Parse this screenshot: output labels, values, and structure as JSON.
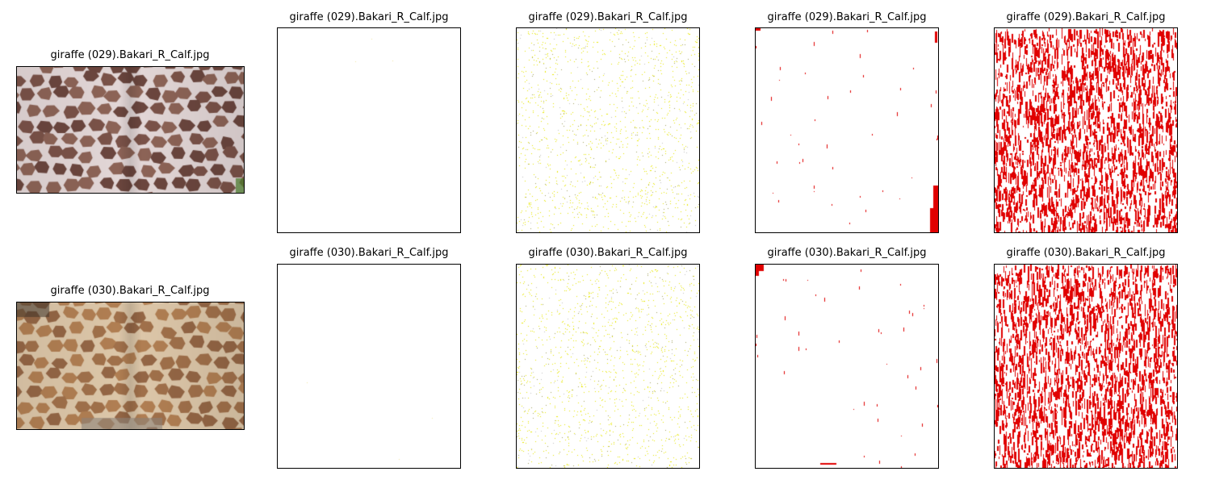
{
  "rows": [
    {
      "name": "giraffe (029)",
      "panels": [
        {
          "title": "giraffe (029).Bakari_R_Calf.jpg",
          "kind": "photo",
          "palette": "dark-brown"
        },
        {
          "title": "giraffe (029).Bakari_R_Calf.jpg",
          "kind": "blank"
        },
        {
          "title": "giraffe (029).Bakari_R_Calf.jpg",
          "kind": "yellow-speckle"
        },
        {
          "title": "giraffe (029).Bakari_R_Calf.jpg",
          "kind": "red-sparse"
        },
        {
          "title": "giraffe (029).Bakari_R_Calf.jpg",
          "kind": "red-dense"
        }
      ]
    },
    {
      "name": "giraffe (030)",
      "panels": [
        {
          "title": "giraffe (030).Bakari_R_Calf.jpg",
          "kind": "photo",
          "palette": "light-brown"
        },
        {
          "title": "giraffe (030).Bakari_R_Calf.jpg",
          "kind": "blank"
        },
        {
          "title": "giraffe (030).Bakari_R_Calf.jpg",
          "kind": "yellow-speckle"
        },
        {
          "title": "giraffe (030).Bakari_R_Calf.jpg",
          "kind": "red-sparse"
        },
        {
          "title": "giraffe (030).Bakari_R_Calf.jpg",
          "kind": "red-dense"
        }
      ]
    }
  ],
  "colors": {
    "highlight_red": "#e00000",
    "highlight_yellow": "#e8e800"
  }
}
